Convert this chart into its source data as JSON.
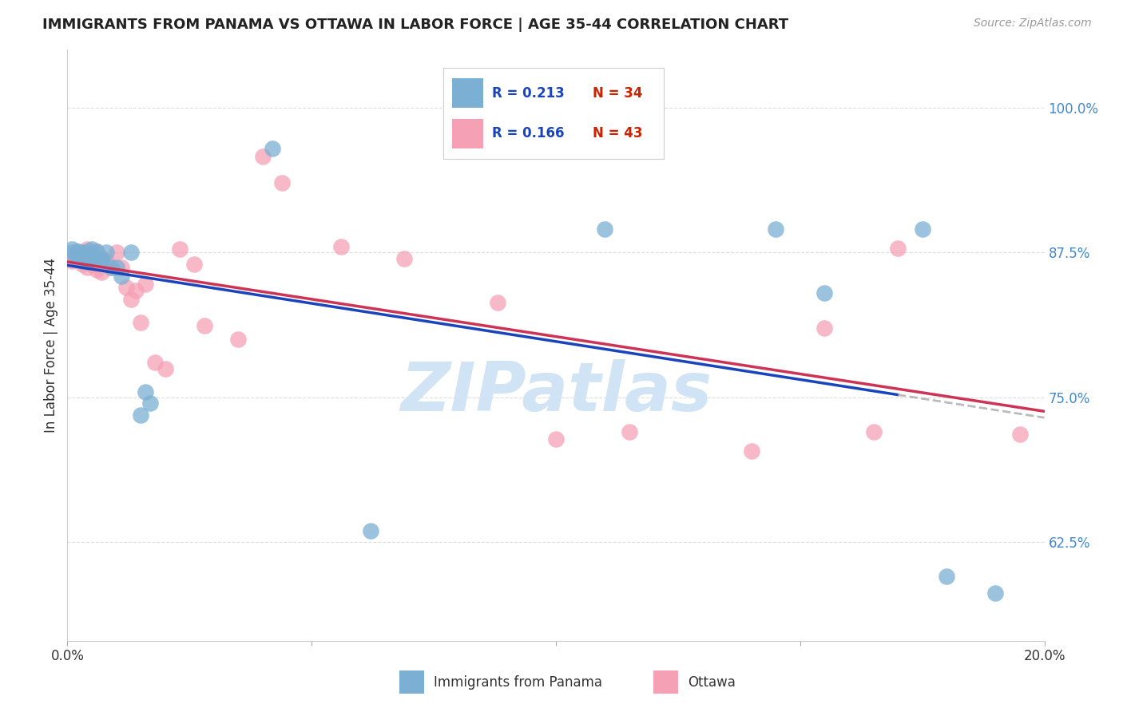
{
  "title": "IMMIGRANTS FROM PANAMA VS OTTAWA IN LABOR FORCE | AGE 35-44 CORRELATION CHART",
  "source": "Source: ZipAtlas.com",
  "ylabel": "In Labor Force | Age 35-44",
  "ytick_labels": [
    "62.5%",
    "75.0%",
    "87.5%",
    "100.0%"
  ],
  "ytick_values": [
    0.625,
    0.75,
    0.875,
    1.0
  ],
  "xlim": [
    0.0,
    0.2
  ],
  "ylim": [
    0.54,
    1.05
  ],
  "legend_R_blue": "0.213",
  "legend_N_blue": "34",
  "legend_R_pink": "0.166",
  "legend_N_pink": "43",
  "blue_scatter_x": [
    0.001,
    0.001,
    0.002,
    0.002,
    0.002,
    0.003,
    0.003,
    0.003,
    0.004,
    0.004,
    0.004,
    0.005,
    0.005,
    0.005,
    0.006,
    0.006,
    0.007,
    0.007,
    0.008,
    0.009,
    0.01,
    0.011,
    0.013,
    0.015,
    0.016,
    0.017,
    0.042,
    0.062,
    0.11,
    0.145,
    0.155,
    0.175,
    0.18,
    0.19
  ],
  "blue_scatter_y": [
    0.875,
    0.878,
    0.872,
    0.876,
    0.87,
    0.875,
    0.868,
    0.872,
    0.876,
    0.871,
    0.867,
    0.878,
    0.873,
    0.87,
    0.876,
    0.87,
    0.87,
    0.868,
    0.875,
    0.862,
    0.862,
    0.855,
    0.875,
    0.735,
    0.755,
    0.745,
    0.965,
    0.635,
    0.895,
    0.895,
    0.84,
    0.895,
    0.596,
    0.581
  ],
  "pink_scatter_x": [
    0.001,
    0.001,
    0.002,
    0.002,
    0.003,
    0.003,
    0.004,
    0.004,
    0.004,
    0.005,
    0.005,
    0.005,
    0.006,
    0.006,
    0.007,
    0.007,
    0.008,
    0.009,
    0.01,
    0.011,
    0.012,
    0.013,
    0.014,
    0.015,
    0.016,
    0.018,
    0.02,
    0.023,
    0.026,
    0.028,
    0.035,
    0.04,
    0.044,
    0.056,
    0.069,
    0.088,
    0.1,
    0.115,
    0.14,
    0.155,
    0.165,
    0.17,
    0.195
  ],
  "pink_scatter_y": [
    0.871,
    0.868,
    0.876,
    0.87,
    0.874,
    0.865,
    0.878,
    0.873,
    0.862,
    0.875,
    0.87,
    0.865,
    0.876,
    0.86,
    0.87,
    0.858,
    0.868,
    0.862,
    0.875,
    0.862,
    0.845,
    0.835,
    0.842,
    0.815,
    0.848,
    0.78,
    0.775,
    0.878,
    0.865,
    0.812,
    0.8,
    0.958,
    0.935,
    0.88,
    0.87,
    0.832,
    0.714,
    0.72,
    0.704,
    0.81,
    0.72,
    0.879,
    0.718
  ],
  "blue_color": "#7bafd4",
  "pink_color": "#f5a0b5",
  "blue_line_color": "#1a44bb",
  "pink_line_color": "#cc3355",
  "blue_dash_color": "#aaaaaa",
  "watermark_text": "ZIPatlas",
  "watermark_color": "#d0e4f5",
  "background_color": "#ffffff",
  "grid_color": "#dddddd",
  "bottom_legend_blue_label": "Immigrants from Panama",
  "bottom_legend_pink_label": "Ottawa"
}
